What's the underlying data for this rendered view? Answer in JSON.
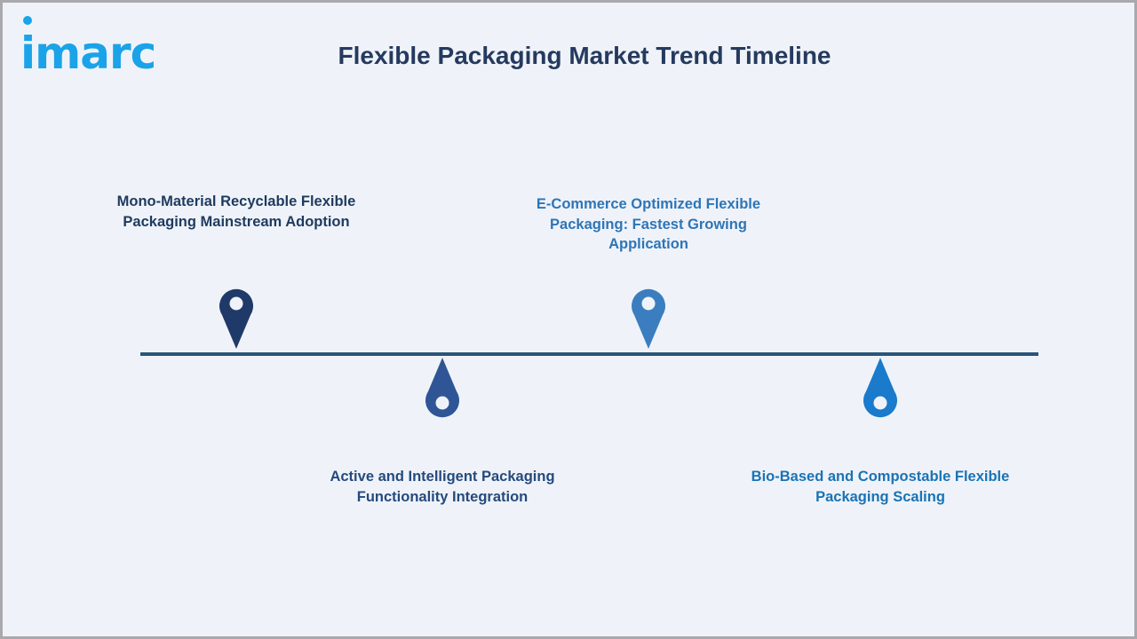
{
  "logo": {
    "text": "imarc",
    "color": "#1aa3e8"
  },
  "title": "Flexible Packaging Market Trend Timeline",
  "colors": {
    "axis": "#2a5578",
    "background": "#eff3f9"
  },
  "milestones": [
    {
      "label": "Mono-Material Recyclable Flexible Packaging Mainstream Adoption",
      "position": "above",
      "color": "#1f3a68",
      "text_color": "#1f3a5f",
      "icon": "map-pin-icon"
    },
    {
      "label": "Active and Intelligent Packaging Functionality Integration",
      "position": "below",
      "color": "#2f5597",
      "text_color": "#254a7d",
      "icon": "map-pin-inverted-icon"
    },
    {
      "label": "E-Commerce Optimized Flexible Packaging: Fastest Growing Application",
      "position": "above",
      "color": "#3a7ebf",
      "text_color": "#2e75b6",
      "icon": "map-pin-icon"
    },
    {
      "label": "Bio-Based and Compostable Flexible Packaging Scaling",
      "position": "below",
      "color": "#1a7acb",
      "text_color": "#1a73b5",
      "icon": "map-pin-inverted-icon"
    }
  ]
}
